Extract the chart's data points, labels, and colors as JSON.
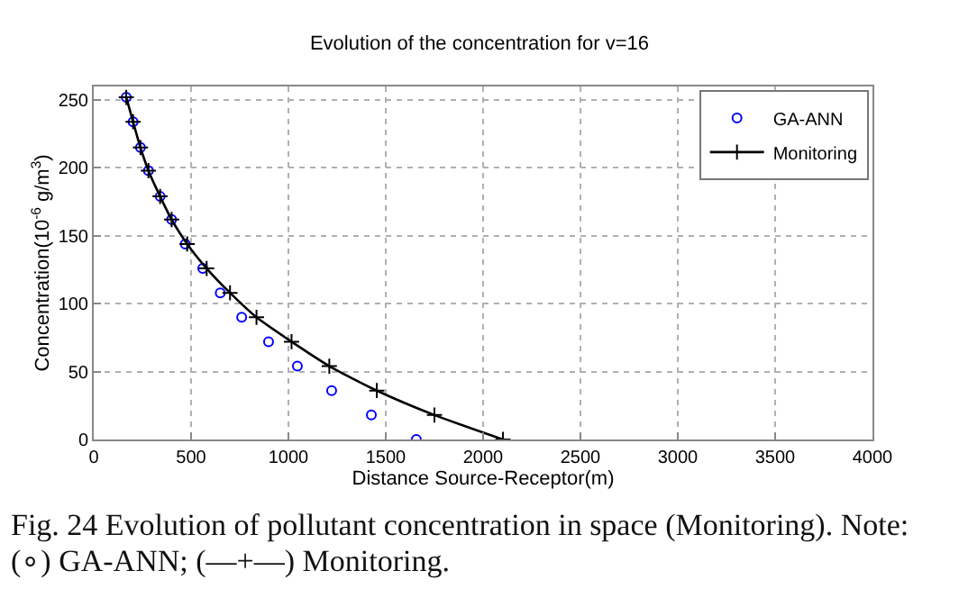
{
  "chart_data": {
    "type": "scatter",
    "title": "Evolution of the concentration for v=16",
    "xlabel": "Distance Source-Receptor(m)",
    "ylabel": "Concentration(10$^{-6}$ g/m$^{3}$)",
    "series": [
      {
        "name": "GA-ANN",
        "type": "scatter",
        "color": "#0000ff",
        "marker": "circle",
        "x": [
          167,
          202,
          240,
          281,
          341,
          400,
          470,
          560,
          650,
          760,
          898,
          1046,
          1222,
          1426,
          1657
        ],
        "values": [
          252,
          234,
          215,
          198,
          179,
          162,
          144,
          126,
          108,
          90,
          72,
          54,
          36,
          18,
          0
        ]
      },
      {
        "name": "Monitoring",
        "type": "line",
        "color": "#000000",
        "marker": "cross",
        "line_style": "solid",
        "x": [
          167,
          202,
          240,
          281,
          341,
          400,
          480,
          580,
          700,
          836,
          1016,
          1210,
          1454,
          1750,
          2102
        ],
        "values": [
          252,
          234,
          215,
          198,
          179,
          162,
          144,
          126,
          108,
          90,
          72,
          54,
          36,
          18,
          0
        ]
      }
    ],
    "xlim": [
      0,
      4000
    ],
    "xticks": [
      0,
      500,
      1000,
      1500,
      2000,
      2500,
      3000,
      3500,
      4000
    ],
    "ylim": [
      0,
      260
    ],
    "yticks": [
      0,
      50,
      100,
      150,
      200,
      250
    ],
    "grid": true,
    "legend": "top right",
    "annotations": [
      "Fig. 24  Evolution of pollutant concentration in space (Monitoring). Note: (∘) GA-ANN; (—+—) Monitoring."
    ]
  }
}
